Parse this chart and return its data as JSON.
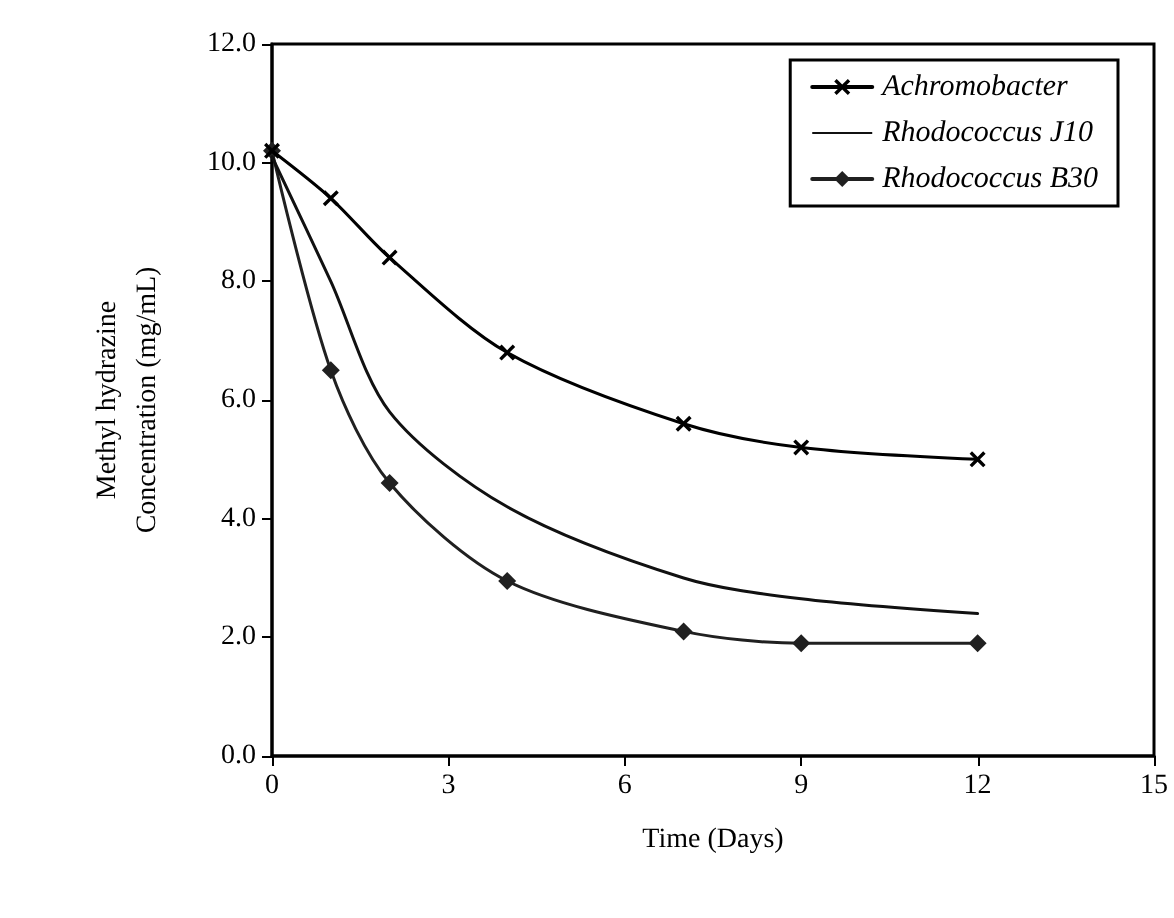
{
  "chart_data": {
    "type": "line",
    "xlabel": "Time (Days)",
    "ylabel": "Methyl hydrazine\nConcentration (mg/mL)",
    "xlim": [
      0,
      15
    ],
    "xticks": [
      0,
      3,
      6,
      9,
      12,
      15
    ],
    "ylim": [
      0,
      12
    ],
    "yticks": [
      {
        "value": 0,
        "label": "0.0"
      },
      {
        "value": 2,
        "label": "2.0"
      },
      {
        "value": 4,
        "label": "4.0"
      },
      {
        "value": 6,
        "label": "6.0"
      },
      {
        "value": 8,
        "label": "8.0"
      },
      {
        "value": 10,
        "label": "10.0"
      },
      {
        "value": 12,
        "label": "12.0"
      }
    ],
    "x": [
      0,
      1,
      2,
      4,
      7,
      9,
      12
    ],
    "series": [
      {
        "name": "Achromobacter",
        "color": "#000000",
        "marker": "cross",
        "values": [
          10.2,
          9.4,
          8.4,
          6.8,
          5.6,
          5.2,
          5.0
        ]
      },
      {
        "name": "Rhodococcus J10",
        "color": "#111111",
        "marker": "none",
        "values": [
          10.1,
          8.0,
          5.8,
          4.2,
          3.0,
          2.65,
          2.4
        ]
      },
      {
        "name": "Rhodococcus B30",
        "color": "#202020",
        "marker": "diamond",
        "values": [
          10.2,
          6.5,
          4.6,
          2.95,
          2.1,
          1.9,
          1.9
        ]
      }
    ],
    "legend": "top right",
    "grid": false,
    "line_style": "solid"
  }
}
